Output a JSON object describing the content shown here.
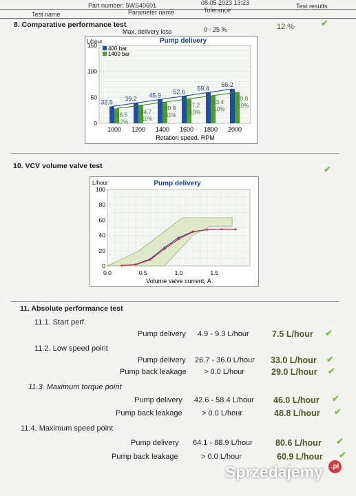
{
  "header": {
    "part_number": "Part number: 5WS40601",
    "date": "08.05.2023  13:23",
    "col_test_name": "Test name",
    "col_parameter_name": "Parameter name",
    "col_tolerance": "Tolerance",
    "col_test_results": "Test results"
  },
  "section8": {
    "title": "8. Comparative performance test",
    "param": "Max. delivery loss",
    "tolerance": "0 - 25 %",
    "result": "12 %",
    "check_icon": "check-icon"
  },
  "chart_data": [
    {
      "type": "bar",
      "title": "Pump delivery",
      "ylabel": "L/hour",
      "xlabel": "Rotation speed, RPM",
      "ylim": [
        0,
        150
      ],
      "yticks": [
        "0",
        "50",
        "100",
        "150"
      ],
      "categories": [
        "1000",
        "1200",
        "1400",
        "1600",
        "1800",
        "2000"
      ],
      "series": [
        {
          "name": "400 bar",
          "color": "#1f4fa3",
          "values": [
            32.5,
            39.2,
            45.9,
            52.6,
            59.4,
            66.2
          ]
        },
        {
          "name": "1400 bar",
          "color": "#4f9a3a",
          "values": [
            28.5,
            34.7,
            40.9,
            47.2,
            53.4,
            59.8
          ]
        }
      ],
      "bar_labels_400": [
        "32.5",
        "39.2",
        "45.9",
        "52.6",
        "59.4",
        "66.2"
      ],
      "bar_labels_1400": [
        "28.5\n-12%",
        "34.7\n-11%",
        "40.9\n-11%",
        "47.2\n-10%",
        "53.4\n-10%",
        "59.8\n-10%"
      ],
      "legend": "top-left",
      "grid": true
    },
    {
      "type": "line",
      "title": "Pump delivery",
      "ylabel": "L/hour",
      "xlabel": "Volume valve current, A",
      "xlim": [
        0,
        2.0
      ],
      "ylim": [
        0,
        100
      ],
      "xticks": [
        "0.0",
        "0.5",
        "1.0",
        "1.5"
      ],
      "yticks": [
        "0",
        "20",
        "40",
        "60",
        "80",
        "100"
      ],
      "x": [
        0.2,
        0.4,
        0.6,
        0.8,
        1.0,
        1.2,
        1.4,
        1.6,
        1.8
      ],
      "series": [
        {
          "values": [
            0.5,
            2,
            9,
            24,
            37,
            45,
            47.5,
            48,
            48
          ],
          "color": "#3a3f9a"
        },
        {
          "values": [
            0.5,
            1.5,
            8,
            22,
            35,
            44.5,
            47.5,
            48,
            48
          ],
          "color": "#c0394f"
        }
      ],
      "tolerance_band": {
        "x": [
          0.0,
          0.8,
          1.2,
          1.45,
          1.75,
          1.75,
          1.5,
          1.05,
          0.45,
          0.0
        ],
        "y": [
          0,
          0,
          40,
          52,
          52,
          63,
          63,
          63,
          20,
          0
        ],
        "color": "#dfe8c9"
      },
      "grid": true
    }
  ],
  "section10": {
    "title": "10. VCV volume valve test",
    "check_icon": "check-icon"
  },
  "section11": {
    "title": "11. Absolute performance test",
    "items": [
      {
        "subtitle": "11.1. Start perf.",
        "rows": [
          {
            "param": "Pump delivery",
            "tol": "4.9 - 9.3 L/hour",
            "result": "7.5 L/hour"
          }
        ]
      },
      {
        "subtitle": "11.2. Low speed point",
        "rows": [
          {
            "param": "Pump delivery",
            "tol": "26.7 - 36.0 L/hour",
            "result": "33.0 L/hour"
          },
          {
            "param": "Pump back leakage",
            "tol": "> 0.0 L/hour",
            "result": "29.0 L/hour"
          }
        ]
      },
      {
        "subtitle": "11.3. Maximum torque point",
        "rows": [
          {
            "param": "Pump delivery",
            "tol": "42.6 - 58.4 L/hour",
            "result": "46.0 L/hour"
          },
          {
            "param": "Pump back leakage",
            "tol": "> 0.0 L/hour",
            "result": "48.8 L/hour"
          }
        ]
      },
      {
        "subtitle": "11.4. Maximum speed point",
        "rows": [
          {
            "param": "Pump delivery",
            "tol": "64.1 - 88.9 L/hour",
            "result": "80.6 L/hour"
          },
          {
            "param": "Pump back leakage",
            "tol": "> 0.0 L/hour",
            "result": "60.9 L/hour"
          }
        ]
      }
    ]
  },
  "watermark": {
    "text": "Sprzedajemy",
    "suffix": ".pl"
  }
}
